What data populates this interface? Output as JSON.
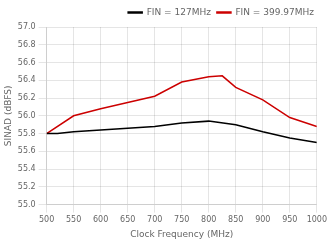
{
  "chart_data": {
    "type": "line",
    "x_label": "Clock Frequency (MHz)",
    "y_label": "SINAD (dBFS)",
    "series": [
      {
        "name": "FIN = 127MHz",
        "color": "#000000",
        "x": [
          500,
          520,
          550,
          600,
          650,
          700,
          750,
          800,
          850,
          900,
          950,
          1000
        ],
        "values": [
          55.8,
          55.8,
          55.82,
          55.84,
          55.86,
          55.88,
          55.92,
          55.94,
          55.9,
          55.82,
          55.75,
          55.7
        ]
      },
      {
        "name": "FIN = 399.97MHz",
        "color": "#cc0000",
        "x": [
          500,
          550,
          600,
          650,
          700,
          750,
          800,
          825,
          850,
          900,
          950,
          1000
        ],
        "values": [
          55.8,
          56.0,
          56.08,
          56.15,
          56.22,
          56.38,
          56.44,
          56.45,
          56.32,
          56.18,
          55.98,
          55.88
        ]
      }
    ],
    "xlim": [
      500,
      1000
    ],
    "ylim": [
      55.0,
      57.0
    ],
    "xticks": [
      500,
      550,
      600,
      650,
      700,
      750,
      800,
      850,
      900,
      950,
      1000
    ],
    "yticks": [
      {
        "value": 55.0,
        "label": "55.0"
      },
      55.2,
      55.4,
      55.6,
      55.8,
      {
        "value": 56.0,
        "label": "56.0"
      },
      56.2,
      56.4,
      56.6,
      56.8,
      {
        "value": 57.0,
        "label": "57.0"
      }
    ],
    "grid": true,
    "legend": "upper right"
  }
}
